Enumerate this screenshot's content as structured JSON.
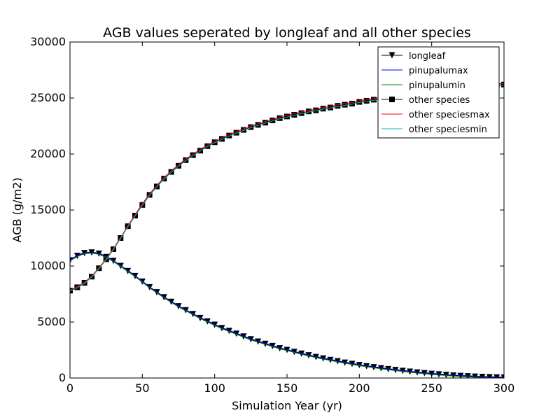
{
  "chart_data": {
    "type": "line",
    "title": "AGB values seperated by longleaf and all other species",
    "xlabel": "Simulation Year (yr)",
    "ylabel": "AGB (g/m2)",
    "xlim": [
      0,
      300
    ],
    "ylim": [
      0,
      30000
    ],
    "xticks": [
      0,
      50,
      100,
      150,
      200,
      250,
      300
    ],
    "yticks": [
      0,
      5000,
      10000,
      15000,
      20000,
      25000,
      30000
    ],
    "xtick_labels": [
      "0",
      "50",
      "100",
      "150",
      "200",
      "250",
      "300"
    ],
    "ytick_labels": [
      "0",
      "5000",
      "10000",
      "15000",
      "20000",
      "25000",
      "30000"
    ],
    "grid": false,
    "legend_position": "top-right",
    "x": [
      0,
      5,
      10,
      15,
      20,
      25,
      30,
      35,
      40,
      45,
      50,
      55,
      60,
      65,
      70,
      75,
      80,
      85,
      90,
      95,
      100,
      105,
      110,
      115,
      120,
      125,
      130,
      135,
      140,
      145,
      150,
      155,
      160,
      165,
      170,
      175,
      180,
      185,
      190,
      195,
      200,
      205,
      210,
      215,
      220,
      225,
      230,
      235,
      240,
      245,
      250,
      255,
      260,
      265,
      270,
      275,
      280,
      285,
      290,
      295,
      300
    ],
    "series": [
      {
        "name": "longleaf",
        "color": "#000000",
        "marker": "triangle-down",
        "values": [
          10500,
          10900,
          11150,
          11200,
          11100,
          10800,
          10450,
          10000,
          9550,
          9100,
          8600,
          8100,
          7650,
          7200,
          6800,
          6400,
          6050,
          5700,
          5350,
          5050,
          4750,
          4450,
          4200,
          3950,
          3700,
          3450,
          3250,
          3050,
          2850,
          2650,
          2500,
          2330,
          2170,
          2020,
          1870,
          1740,
          1610,
          1490,
          1370,
          1260,
          1150,
          1050,
          960,
          870,
          790,
          710,
          630,
          560,
          490,
          430,
          370,
          320,
          270,
          220,
          180,
          150,
          120,
          90,
          70,
          50,
          40
        ]
      },
      {
        "name": "pinupalumax",
        "color": "#0000ff",
        "marker": "none",
        "values": [
          10550,
          10950,
          11200,
          11250,
          11150,
          10850,
          10500,
          10050,
          9600,
          9150,
          8650,
          8150,
          7700,
          7250,
          6850,
          6450,
          6100,
          5750,
          5400,
          5100,
          4800,
          4500,
          4250,
          4000,
          3750,
          3500,
          3300,
          3100,
          2900,
          2700,
          2550,
          2380,
          2220,
          2070,
          1920,
          1790,
          1660,
          1540,
          1420,
          1310,
          1200,
          1100,
          1010,
          920,
          840,
          760,
          680,
          610,
          540,
          480,
          420,
          370,
          320,
          270,
          230,
          200,
          170,
          140,
          120,
          100,
          90
        ]
      },
      {
        "name": "pinupalumin",
        "color": "#008000",
        "marker": "none",
        "values": [
          10450,
          10850,
          11100,
          11150,
          11050,
          10750,
          10400,
          9950,
          9500,
          9050,
          8550,
          8050,
          7600,
          7150,
          6750,
          6350,
          6000,
          5650,
          5300,
          5000,
          4700,
          4400,
          4150,
          3900,
          3650,
          3400,
          3200,
          3000,
          2800,
          2600,
          2450,
          2280,
          2120,
          1970,
          1820,
          1690,
          1560,
          1440,
          1320,
          1210,
          1100,
          1000,
          910,
          820,
          740,
          660,
          580,
          510,
          440,
          380,
          320,
          270,
          220,
          170,
          130,
          100,
          70,
          40,
          20,
          10,
          0
        ]
      },
      {
        "name": "other species",
        "color": "#000000",
        "marker": "square",
        "values": [
          7800,
          8100,
          8500,
          9050,
          9800,
          10600,
          11500,
          12500,
          13550,
          14500,
          15450,
          16350,
          17100,
          17800,
          18400,
          18950,
          19450,
          19900,
          20300,
          20700,
          21050,
          21350,
          21650,
          21900,
          22150,
          22400,
          22600,
          22800,
          23000,
          23200,
          23350,
          23500,
          23650,
          23800,
          23900,
          24050,
          24150,
          24300,
          24400,
          24500,
          24650,
          24750,
          24850,
          24950,
          25050,
          25150,
          25250,
          25350,
          25450,
          25500,
          25600,
          25700,
          25750,
          25800,
          25900,
          25950,
          26000,
          26050,
          26100,
          26150,
          26200
        ]
      },
      {
        "name": "other speciesmax",
        "color": "#ff0000",
        "marker": "none",
        "values": [
          7850,
          8150,
          8550,
          9100,
          9850,
          10650,
          11550,
          12550,
          13600,
          14600,
          15550,
          16450,
          17200,
          17900,
          18500,
          19050,
          19550,
          20000,
          20400,
          20800,
          21150,
          21450,
          21750,
          22000,
          22250,
          22500,
          22700,
          22900,
          23100,
          23300,
          23450,
          23600,
          23750,
          23900,
          24000,
          24150,
          24250,
          24400,
          24500,
          24600,
          24750,
          24850,
          24950,
          25050,
          25150,
          25250,
          25350,
          25450,
          25550,
          25600,
          25700,
          25800,
          25850,
          25900,
          26000,
          26050,
          26100,
          26150,
          26200,
          26250,
          26300
        ]
      },
      {
        "name": "other speciesmin",
        "color": "#00bfbf",
        "marker": "none",
        "values": [
          7750,
          8050,
          8450,
          9000,
          9750,
          10550,
          11450,
          12450,
          13500,
          14450,
          15400,
          16300,
          17050,
          17750,
          18350,
          18900,
          19400,
          19850,
          20250,
          20650,
          21000,
          21300,
          21600,
          21850,
          22100,
          22350,
          22550,
          22750,
          22950,
          23150,
          23300,
          23450,
          23600,
          23750,
          23850,
          24000,
          24100,
          24250,
          24350,
          24450,
          24600,
          24700,
          24800,
          24900,
          25000,
          25100,
          25200,
          25300,
          25400,
          25450,
          25550,
          25650,
          25700,
          25750,
          25850,
          25900,
          25950,
          26000,
          26050,
          26100,
          26150
        ]
      }
    ]
  }
}
